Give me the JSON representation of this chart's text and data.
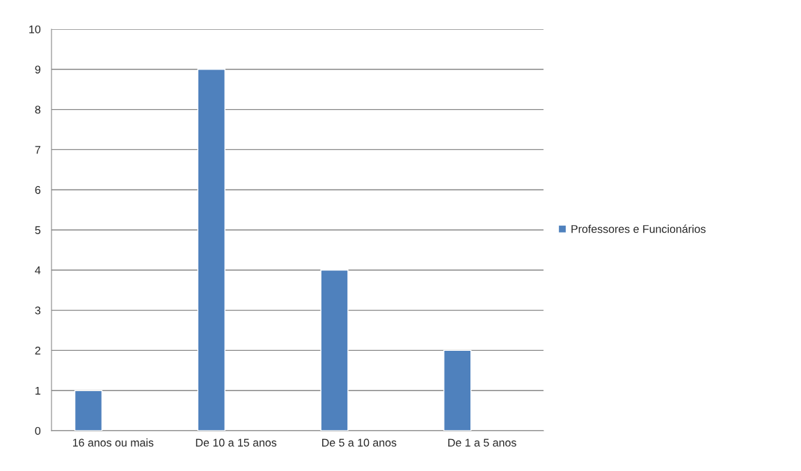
{
  "chart_data": {
    "type": "bar",
    "categories": [
      "16 anos ou mais",
      "De 10 a 15 anos",
      "De 5 a 10 anos",
      "De 1 a 5 anos"
    ],
    "series": [
      {
        "name": "Professores e Funcionários",
        "color": "#4f81bd",
        "values": [
          1,
          9,
          4,
          2
        ]
      }
    ],
    "ylim": [
      0,
      10
    ],
    "yticks": [
      0,
      1,
      2,
      3,
      4,
      5,
      6,
      7,
      8,
      9,
      10
    ],
    "grid": "y",
    "legend": "right"
  }
}
